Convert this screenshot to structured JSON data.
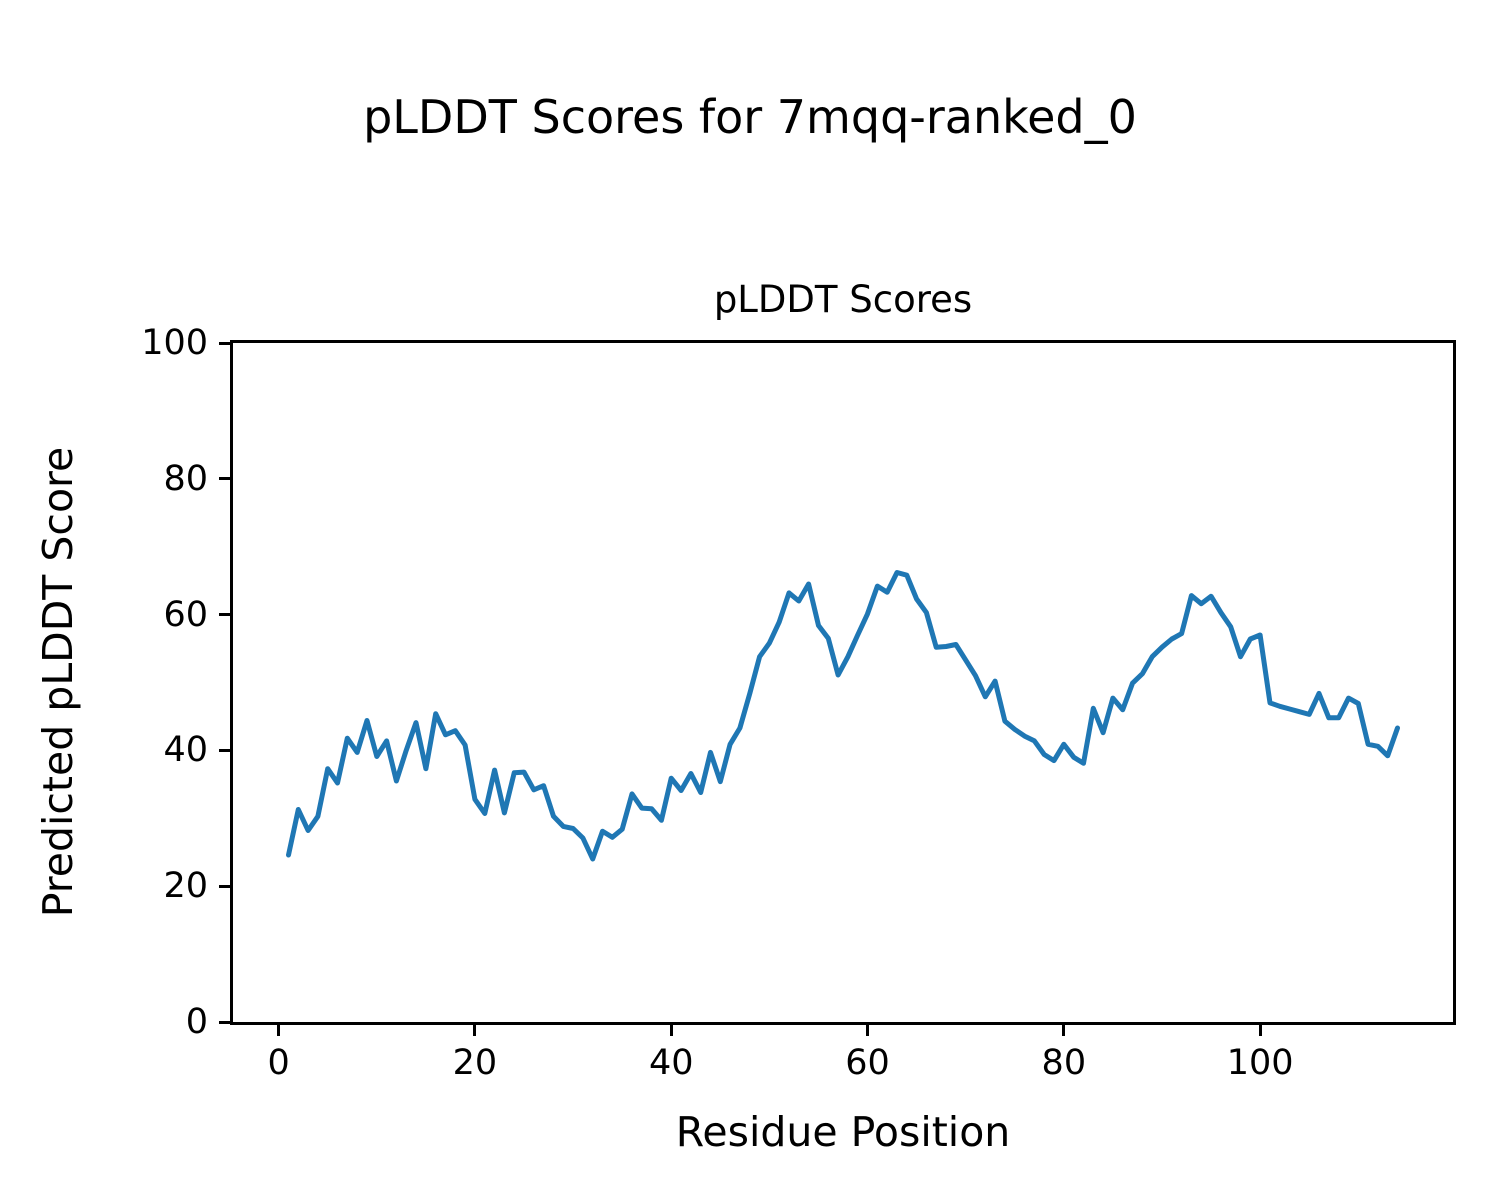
{
  "chart_data": {
    "type": "line",
    "suptitle": "pLDDT Scores for 7mqq-ranked_0",
    "title": "pLDDT Scores",
    "xlabel": "Residue Position",
    "ylabel": "Predicted pLDDT Score",
    "xlim": [
      -4.65,
      119.65
    ],
    "ylim": [
      0,
      100
    ],
    "xticks": [
      0,
      20,
      40,
      60,
      80,
      100
    ],
    "yticks": [
      0,
      20,
      40,
      60,
      80,
      100
    ],
    "grid": "off",
    "legend": "none",
    "line_color": "#1f77b4",
    "line_width": 5,
    "series_name": "pLDDT",
    "x": [
      1,
      2,
      3,
      4,
      5,
      6,
      7,
      8,
      9,
      10,
      11,
      12,
      13,
      14,
      15,
      16,
      17,
      18,
      19,
      20,
      21,
      22,
      23,
      24,
      25,
      26,
      27,
      28,
      29,
      30,
      31,
      32,
      33,
      34,
      35,
      36,
      37,
      38,
      39,
      40,
      41,
      42,
      43,
      44,
      45,
      46,
      47,
      48,
      49,
      50,
      51,
      52,
      53,
      54,
      55,
      56,
      57,
      58,
      59,
      60,
      61,
      62,
      63,
      64,
      65,
      66,
      67,
      68,
      69,
      70,
      71,
      72,
      73,
      74,
      75,
      76,
      77,
      78,
      79,
      80,
      81,
      82,
      83,
      84,
      85,
      86,
      87,
      88,
      89,
      90,
      91,
      92,
      93,
      94,
      95,
      96,
      97,
      98,
      99,
      100,
      101,
      102,
      103,
      104,
      105,
      106,
      107,
      108,
      109,
      110,
      111,
      112,
      113,
      114
    ],
    "values": [
      24.6,
      31.3,
      28.2,
      30.3,
      37.3,
      35.2,
      41.8,
      39.7,
      44.4,
      39.1,
      41.4,
      35.5,
      40.0,
      44.1,
      37.3,
      45.4,
      42.3,
      42.9,
      40.8,
      32.8,
      30.7,
      37.1,
      30.8,
      36.7,
      36.8,
      34.2,
      34.8,
      30.3,
      28.8,
      28.5,
      27.1,
      24.0,
      28.1,
      27.2,
      28.4,
      33.6,
      31.5,
      31.4,
      29.7,
      35.9,
      34.1,
      36.6,
      33.8,
      39.7,
      35.4,
      40.9,
      43.3,
      48.4,
      53.8,
      55.8,
      58.9,
      63.2,
      62.0,
      64.5,
      58.4,
      56.5,
      51.1,
      53.8,
      57.0,
      60.1,
      64.2,
      63.3,
      66.2,
      65.8,
      62.3,
      60.3,
      55.2,
      55.3,
      55.6,
      53.3,
      51.0,
      47.9,
      50.2,
      44.3,
      43.1,
      42.1,
      41.4,
      39.4,
      38.5,
      40.9,
      39.0,
      38.1,
      46.2,
      42.6,
      47.7,
      46.0,
      49.9,
      51.3,
      53.8,
      55.2,
      56.4,
      57.2,
      62.8,
      61.6,
      62.7,
      60.3,
      58.2,
      53.8,
      56.4,
      57.0,
      47.0,
      46.5,
      46.1,
      45.7,
      45.3,
      48.4,
      44.8,
      44.8,
      47.7,
      46.9,
      40.9,
      40.6,
      39.2,
      43.3
    ]
  }
}
